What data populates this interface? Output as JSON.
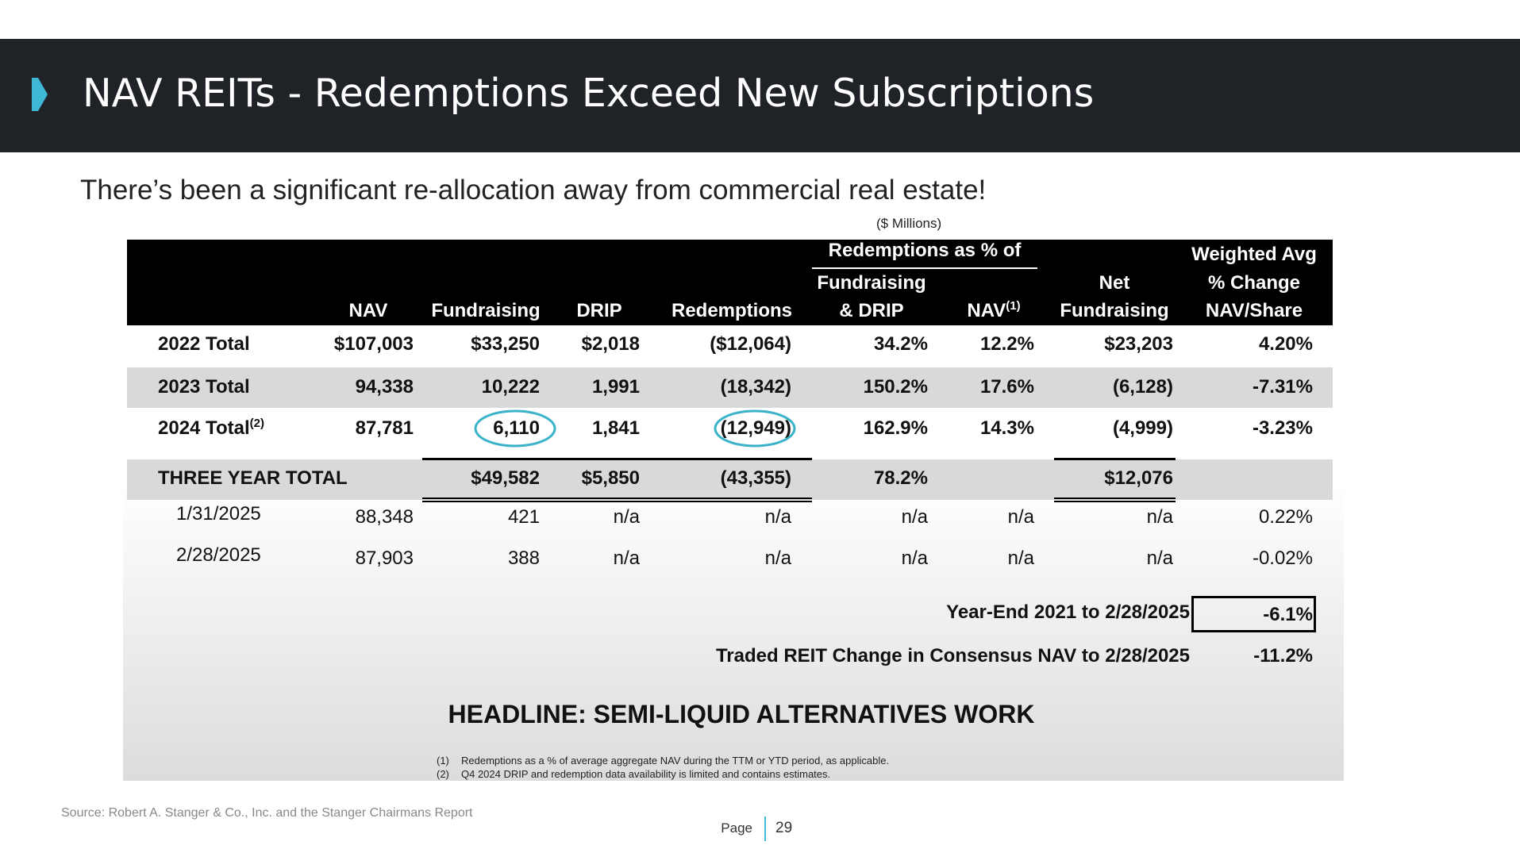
{
  "header": {
    "title": "NAV REITs - Redemptions Exceed New Subscriptions"
  },
  "subtitle": "There’s been a significant re-allocation away from commercial real estate!",
  "table": {
    "units": "($ Millions)",
    "group_header": "Redemptions as % of",
    "columns": [
      {
        "lines": [
          "NAV"
        ]
      },
      {
        "lines": [
          "Fundraising"
        ]
      },
      {
        "lines": [
          "DRIP"
        ]
      },
      {
        "lines": [
          "Redemptions"
        ]
      },
      {
        "lines": [
          "Fundraising",
          "& DRIP"
        ]
      },
      {
        "lines": [
          "NAV"
        ],
        "note": "(1)"
      },
      {
        "lines": [
          "Net",
          "Fundraising"
        ]
      },
      {
        "lines": [
          "Weighted Avg",
          "% Change",
          "NAV/Share"
        ]
      }
    ],
    "rows": [
      {
        "label": "2022 Total",
        "cells": [
          "$107,003",
          "$33,250",
          "$2,018",
          "($12,064)",
          "34.2%",
          "12.2%",
          "$23,203",
          "4.20%"
        ]
      },
      {
        "label": "2023 Total",
        "cells": [
          "94,338",
          "10,222",
          "1,991",
          "(18,342)",
          "150.2%",
          "17.6%",
          "(6,128)",
          "-7.31%"
        ]
      },
      {
        "label": "2024 Total",
        "note": "(2)",
        "cells": [
          "87,781",
          "6,110",
          "1,841",
          "(12,949)",
          "162.9%",
          "14.3%",
          "(4,999)",
          "-3.23%"
        ]
      },
      {
        "label": "THREE YEAR TOTAL",
        "cells": [
          null,
          "$49,582",
          "$5,850",
          "(43,355)",
          "78.2%",
          null,
          "$12,076",
          null
        ]
      },
      {
        "label": "1/31/2025",
        "cells": [
          "88,348",
          "421",
          "n/a",
          "n/a",
          "n/a",
          "n/a",
          "n/a",
          "0.22%"
        ]
      },
      {
        "label": "2/28/2025",
        "cells": [
          "87,903",
          "388",
          "n/a",
          "n/a",
          "n/a",
          "n/a",
          "n/a",
          "-0.02%"
        ]
      }
    ],
    "summary": [
      {
        "label": "Year-End 2021 to 2/28/2025",
        "value": "-6.1%"
      },
      {
        "label": "Traded REIT Change in Consensus NAV to 2/28/2025",
        "value": "-11.2%"
      }
    ],
    "headline": "HEADLINE: SEMI-LIQUID ALTERNATIVES WORK",
    "footnotes": [
      {
        "marker": "(1)",
        "text": "Redemptions as a % of average aggregate NAV during the TTM or YTD period, as applicable."
      },
      {
        "marker": "(2)",
        "text": "Q4 2024 DRIP and redemption data availability is limited and contains estimates."
      }
    ]
  },
  "footer": {
    "source": "Source: Robert A. Stanger & Co., Inc. and the Stanger Chairmans Report",
    "page_label": "Page",
    "page_number": "29"
  }
}
